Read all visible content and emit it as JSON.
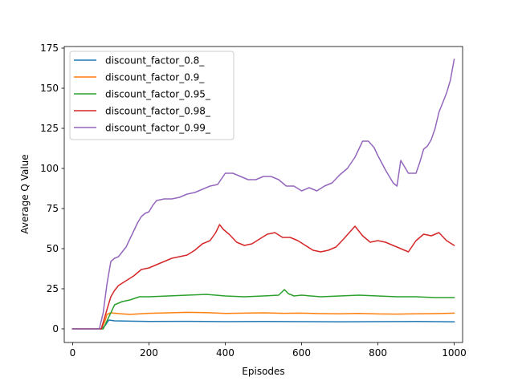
{
  "chart_data": {
    "type": "line",
    "title": "",
    "xlabel": "Episodes",
    "ylabel": "Average Q Value",
    "xlim": [
      -22,
      1022
    ],
    "ylim": [
      -8.5,
      176
    ],
    "xticks": [
      0,
      200,
      400,
      600,
      800,
      1000
    ],
    "yticks": [
      0,
      25,
      50,
      75,
      100,
      125,
      150,
      175
    ],
    "grid": false,
    "legend_position": "upper-left",
    "series": [
      {
        "name": "discount_factor_0.8_",
        "color": "#1f77b4",
        "x": [
          0,
          75,
          85,
          95,
          110,
          150,
          200,
          300,
          400,
          500,
          600,
          700,
          800,
          900,
          1000
        ],
        "y": [
          0,
          0,
          2,
          5.5,
          5,
          4.8,
          4.6,
          4.7,
          4.5,
          4.6,
          4.5,
          4.4,
          4.5,
          4.6,
          4.4
        ]
      },
      {
        "name": "discount_factor_0.9_",
        "color": "#ff7f0e",
        "x": [
          0,
          75,
          85,
          90,
          100,
          120,
          150,
          200,
          250,
          300,
          350,
          400,
          450,
          500,
          550,
          600,
          650,
          700,
          750,
          800,
          850,
          900,
          950,
          1000
        ],
        "y": [
          0,
          0,
          5,
          9,
          10,
          9.5,
          9,
          9.7,
          10,
          10.3,
          10.1,
          9.6,
          9.8,
          10,
          9.7,
          9.8,
          9.5,
          9.4,
          9.6,
          9.3,
          9.2,
          9.4,
          9.5,
          9.8
        ]
      },
      {
        "name": "discount_factor_0.95_",
        "color": "#2ca02c",
        "x": [
          0,
          80,
          90,
          100,
          110,
          130,
          150,
          175,
          200,
          250,
          300,
          350,
          400,
          450,
          500,
          540,
          555,
          565,
          580,
          600,
          650,
          700,
          750,
          800,
          850,
          900,
          950,
          1000
        ],
        "y": [
          0,
          0,
          5,
          10,
          15,
          17,
          18,
          20,
          20,
          20.5,
          21,
          21.5,
          20.5,
          20,
          20.5,
          21,
          24.5,
          22,
          20.5,
          21,
          20,
          20.5,
          21,
          20.5,
          20,
          20,
          19.5,
          19.5
        ]
      },
      {
        "name": "discount_factor_0.98_",
        "color": "#d62728",
        "x": [
          0,
          75,
          90,
          100,
          110,
          120,
          140,
          160,
          180,
          200,
          230,
          260,
          300,
          320,
          340,
          360,
          375,
          385,
          395,
          410,
          430,
          450,
          470,
          490,
          510,
          530,
          550,
          570,
          590,
          610,
          630,
          650,
          670,
          690,
          710,
          725,
          740,
          760,
          780,
          800,
          820,
          840,
          860,
          880,
          900,
          920,
          940,
          960,
          980,
          1000
        ],
        "y": [
          0,
          0,
          12,
          20,
          24,
          27,
          30,
          33,
          37,
          38,
          41,
          44,
          46,
          49,
          53,
          55,
          60,
          65,
          62,
          59,
          54,
          52,
          53,
          56,
          59,
          60,
          57,
          57,
          55,
          52,
          49,
          48,
          49,
          51,
          56,
          60,
          64,
          58,
          54,
          55,
          54,
          52,
          50,
          48,
          55,
          59,
          58,
          60,
          55,
          52
        ]
      },
      {
        "name": "discount_factor_0.99_",
        "color": "#9467bd",
        "x": [
          0,
          70,
          80,
          90,
          100,
          110,
          120,
          130,
          140,
          150,
          160,
          170,
          180,
          190,
          200,
          210,
          220,
          240,
          260,
          280,
          300,
          320,
          340,
          360,
          380,
          400,
          420,
          440,
          460,
          480,
          500,
          520,
          540,
          560,
          580,
          600,
          620,
          640,
          660,
          680,
          700,
          720,
          740,
          760,
          775,
          790,
          800,
          820,
          840,
          850,
          860,
          870,
          880,
          890,
          900,
          910,
          920,
          930,
          940,
          950,
          960,
          970,
          980,
          990,
          1000
        ],
        "y": [
          0,
          0,
          10,
          28,
          42,
          44,
          45,
          48,
          51,
          56,
          61,
          66,
          70,
          72,
          73,
          77,
          80,
          81,
          81,
          82,
          84,
          85,
          87,
          89,
          90,
          97,
          97,
          95,
          93,
          93,
          95,
          95,
          93,
          89,
          89,
          86,
          88,
          86,
          89,
          91,
          96,
          100,
          107,
          117,
          117,
          113,
          108,
          99,
          91,
          89,
          105,
          101,
          97,
          97,
          97,
          104,
          112,
          114,
          118,
          125,
          135,
          141,
          147,
          155,
          168
        ]
      }
    ]
  }
}
